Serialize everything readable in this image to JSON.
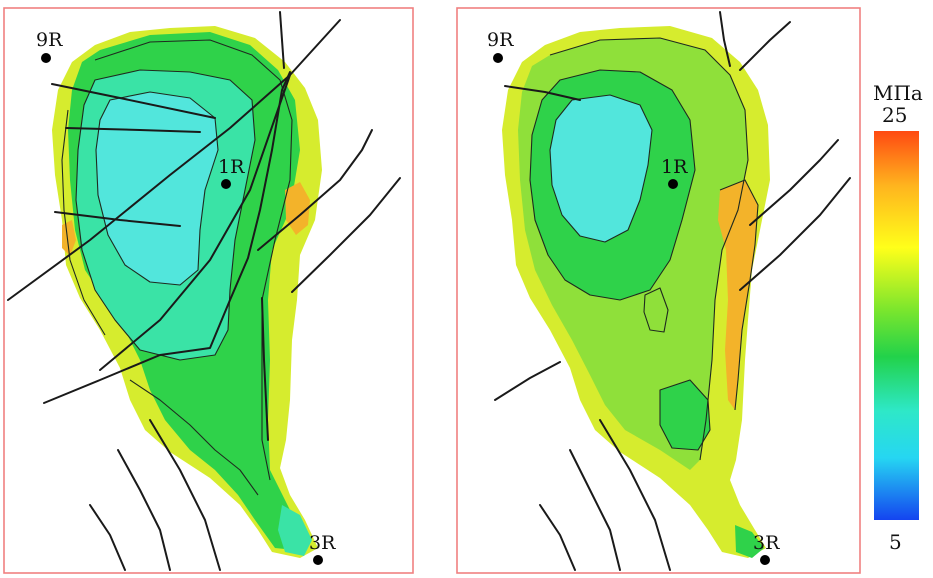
{
  "legend": {
    "unit": "МПа",
    "max_label": "25",
    "min_label": "5",
    "max_value": 25,
    "min_value": 5,
    "gradient_stops": [
      {
        "at": 0.0,
        "color": "#ff4a12"
      },
      {
        "at": 0.14,
        "color": "#ffb41e"
      },
      {
        "at": 0.3,
        "color": "#ffff1a"
      },
      {
        "at": 0.46,
        "color": "#7be62d"
      },
      {
        "at": 0.58,
        "color": "#22d24a"
      },
      {
        "at": 0.72,
        "color": "#2ee8c8"
      },
      {
        "at": 0.84,
        "color": "#26d6f2"
      },
      {
        "at": 1.0,
        "color": "#1444f0"
      }
    ]
  },
  "panels": [
    {
      "id": "left",
      "wells": [
        {
          "label": "9R"
        },
        {
          "label": "1R"
        },
        {
          "label": "3R"
        }
      ]
    },
    {
      "id": "right",
      "wells": [
        {
          "label": "9R"
        },
        {
          "label": "1R"
        },
        {
          "label": "3R"
        }
      ]
    }
  ],
  "colors": {
    "frame": "#f08080",
    "fault": "#1a1a1a",
    "zone_yellow": "#d6ec2e",
    "zone_lightgreen": "#8fe03a",
    "zone_green": "#2fd24a",
    "zone_teal": "#3ae3a6",
    "zone_cyan": "#52e6dc",
    "zone_orange": "#f3b32a"
  }
}
